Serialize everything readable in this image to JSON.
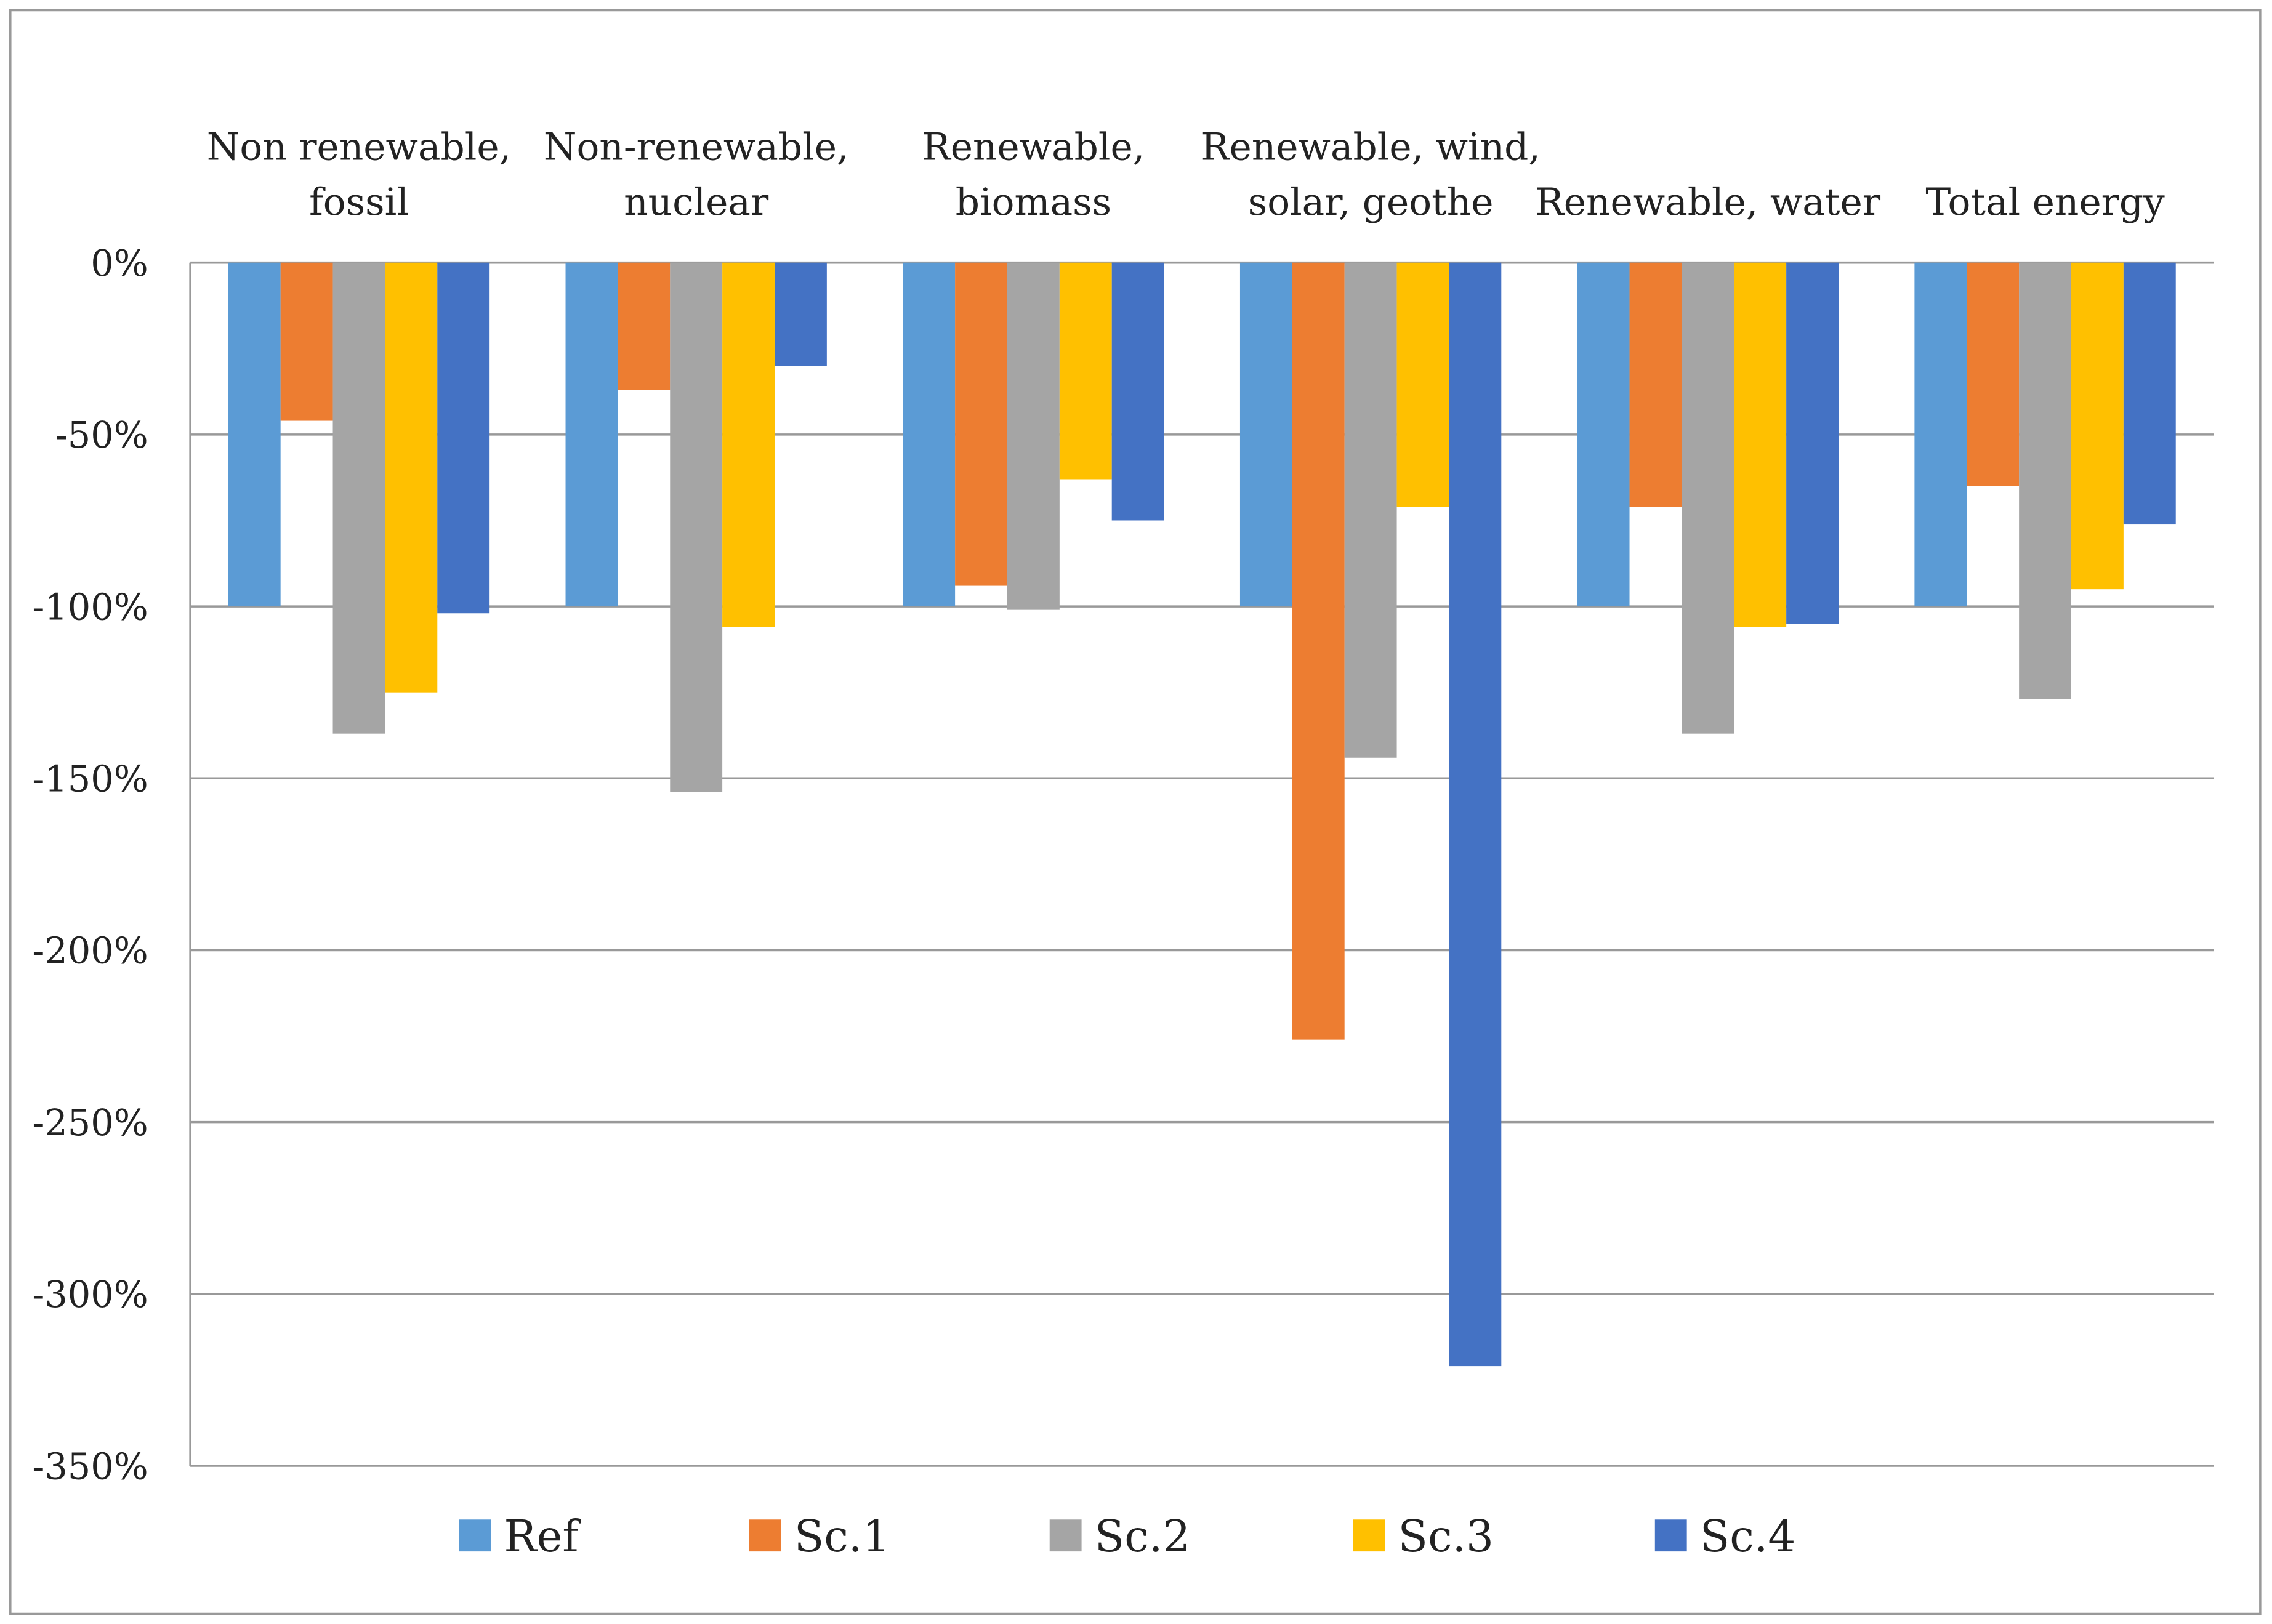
{
  "chart_data": {
    "type": "bar",
    "title": "",
    "xlabel": "",
    "ylabel": "",
    "ylim": [
      -350,
      0
    ],
    "yticks": [
      0,
      -50,
      -100,
      -150,
      -200,
      -250,
      -300,
      -350
    ],
    "ytick_labels": [
      "0%",
      "-50%",
      "-100%",
      "-150%",
      "-200%",
      "-250%",
      "-300%",
      "-350%"
    ],
    "grid": true,
    "legend_position": "bottom",
    "categories": [
      [
        "Non renewable,",
        "fossil"
      ],
      [
        "Non-renewable,",
        "nuclear"
      ],
      [
        "Renewable,",
        "biomass"
      ],
      [
        "Renewable, wind,",
        "solar, geothe"
      ],
      [
        "Renewable, water"
      ],
      [
        "Total energy"
      ]
    ],
    "series": [
      {
        "name": "Ref",
        "color": "#5B9BD5",
        "values": [
          -100,
          -100,
          -100,
          -100,
          -100,
          -100
        ]
      },
      {
        "name": "Sc.1",
        "color": "#ED7D31",
        "values": [
          -46,
          -37,
          -94,
          -226,
          -71,
          -65
        ]
      },
      {
        "name": "Sc.2",
        "color": "#A5A5A5",
        "values": [
          -137,
          -154,
          -101,
          -144,
          -137,
          -127
        ]
      },
      {
        "name": "Sc.3",
        "color": "#FFC000",
        "values": [
          -125,
          -106,
          -63,
          -71,
          -106,
          -95
        ]
      },
      {
        "name": "Sc.4",
        "color": "#4472C4",
        "values": [
          -102,
          -30,
          -75,
          -321,
          -105,
          -76
        ]
      }
    ]
  }
}
